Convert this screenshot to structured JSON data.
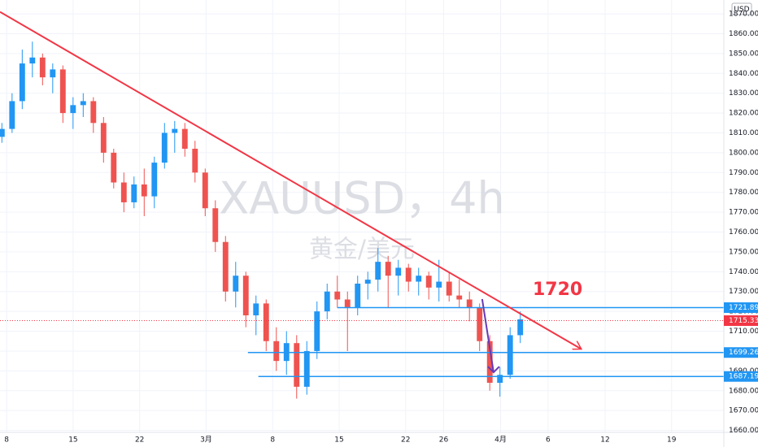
{
  "chart_data": {
    "type": "candlestick",
    "title": "XAUUSD，4h",
    "subtitle": "黄金/美元",
    "currency": "USD",
    "x": [
      7.5,
      8.57,
      9.64,
      10.71,
      11.78,
      12.85,
      13.92,
      14.99,
      16.06,
      17.13,
      18.2,
      19.27,
      20.34,
      21.41,
      22.48,
      23.55,
      24.62,
      25.69,
      26.76,
      27.83,
      28.9,
      29.97,
      31.04,
      32.11,
      33.18,
      34.25,
      35.32,
      36.39,
      37.46,
      38.53,
      39.6,
      40.67,
      41.74,
      42.81,
      43.88,
      44.95,
      46.02,
      47.09,
      48.16,
      49.23,
      50.3,
      51.37,
      52.44,
      53.51,
      54.58,
      55.65,
      56.72,
      57.79,
      58.86,
      59.93,
      61.0,
      62.07
    ],
    "open": [
      1808,
      1812,
      1826,
      1845,
      1848,
      1838,
      1842,
      1820,
      1824,
      1826,
      1815,
      1800,
      1785,
      1775,
      1784,
      1778,
      1795,
      1810,
      1812,
      1802,
      1790,
      1772,
      1755,
      1730,
      1738,
      1718,
      1724,
      1705,
      1695,
      1704,
      1682,
      1700,
      1720,
      1730,
      1726,
      1722,
      1734,
      1736,
      1745,
      1738,
      1742,
      1735,
      1738,
      1732,
      1735,
      1728,
      1726,
      1722,
      1705,
      1684,
      1688,
      1708
    ],
    "high": [
      1815,
      1830,
      1852,
      1856,
      1850,
      1845,
      1844,
      1828,
      1830,
      1828,
      1818,
      1802,
      1790,
      1788,
      1792,
      1798,
      1815,
      1816,
      1815,
      1806,
      1792,
      1776,
      1758,
      1745,
      1740,
      1728,
      1726,
      1712,
      1710,
      1708,
      1705,
      1725,
      1734,
      1738,
      1730,
      1738,
      1740,
      1752,
      1748,
      1746,
      1744,
      1742,
      1740,
      1746,
      1740,
      1736,
      1730,
      1724,
      1708,
      1692,
      1712,
      1720
    ],
    "low": [
      1805,
      1810,
      1822,
      1838,
      1834,
      1830,
      1815,
      1812,
      1818,
      1810,
      1795,
      1782,
      1770,
      1772,
      1768,
      1772,
      1792,
      1800,
      1798,
      1785,
      1768,
      1750,
      1725,
      1722,
      1712,
      1708,
      1700,
      1690,
      1688,
      1676,
      1678,
      1696,
      1716,
      1722,
      1700,
      1718,
      1726,
      1730,
      1722,
      1728,
      1730,
      1728,
      1726,
      1725,
      1725,
      1722,
      1715,
      1700,
      1680,
      1677,
      1686,
      1704
    ],
    "close": [
      1812,
      1826,
      1845,
      1848,
      1838,
      1842,
      1820,
      1824,
      1826,
      1815,
      1800,
      1785,
      1775,
      1784,
      1778,
      1795,
      1810,
      1812,
      1802,
      1790,
      1772,
      1755,
      1730,
      1738,
      1718,
      1724,
      1705,
      1695,
      1704,
      1682,
      1700,
      1720,
      1730,
      1726,
      1722,
      1734,
      1736,
      1745,
      1738,
      1742,
      1735,
      1738,
      1732,
      1735,
      1728,
      1726,
      1722,
      1705,
      1684,
      1688,
      1708,
      1716
    ],
    "up_color": "#2196f3",
    "down_color": "#ef5350",
    "xlim": [
      7.3,
      83.5
    ],
    "xticks": [
      8,
      15,
      22,
      {
        "value": 29,
        "label": "3月"
      },
      {
        "value": 36,
        "label": "8"
      },
      {
        "value": 43,
        "label": "15"
      },
      {
        "value": 50,
        "label": "22"
      },
      {
        "value": 54,
        "label": "26"
      },
      {
        "value": 60,
        "label": "4月"
      },
      {
        "value": 65,
        "label": "6"
      },
      {
        "value": 71,
        "label": "12"
      },
      {
        "value": 78,
        "label": "19"
      }
    ],
    "ylim": [
      1659,
      1877
    ],
    "yticks": [
      {
        "value": 1660,
        "label": "1660.000"
      },
      {
        "value": 1670,
        "label": "1670.000"
      },
      {
        "value": 1680,
        "label": "1680.000"
      },
      {
        "value": 1690,
        "label": "1690.000"
      },
      {
        "value": 1700,
        "label": "1700.000"
      },
      {
        "value": 1710,
        "label": "1710.000"
      },
      {
        "value": 1720,
        "label": "1720.000"
      },
      {
        "value": 1730,
        "label": "1730.000"
      },
      {
        "value": 1740,
        "label": "1740.000"
      },
      {
        "value": 1750,
        "label": "1750.000"
      },
      {
        "value": 1760,
        "label": "1760.000"
      },
      {
        "value": 1770,
        "label": "1770.000"
      },
      {
        "value": 1780,
        "label": "1780.000"
      },
      {
        "value": 1790,
        "label": "1790.000"
      },
      {
        "value": 1800,
        "label": "1800.000"
      },
      {
        "value": 1810,
        "label": "1810.000"
      },
      {
        "value": 1820,
        "label": "1820.000"
      },
      {
        "value": 1830,
        "label": "1830.000"
      },
      {
        "value": 1840,
        "label": "1840.000"
      },
      {
        "value": 1850,
        "label": "1850.000"
      },
      {
        "value": 1860,
        "label": "1860.000"
      },
      {
        "value": 1870,
        "label": "1870.000"
      }
    ],
    "grid": true,
    "trendline": {
      "x": [
        7.3,
        68.5
      ],
      "y": [
        1871,
        1701
      ],
      "color": "#f23645"
    },
    "arrow": {
      "x": [
        58.06,
        59.26
      ],
      "y": [
        1726.2,
        1689.3
      ],
      "color": "#673ab7"
    },
    "levels": [
      {
        "value": 1721.892,
        "x_start": 42.8
      },
      {
        "value": 1699.263,
        "x_start": 33.4
      },
      {
        "value": 1687.192,
        "x_start": 34.5
      }
    ],
    "level_color": "#2196f3",
    "last_price": 1715.338,
    "last_color": "#f23645",
    "annotations": [
      "1720"
    ]
  }
}
